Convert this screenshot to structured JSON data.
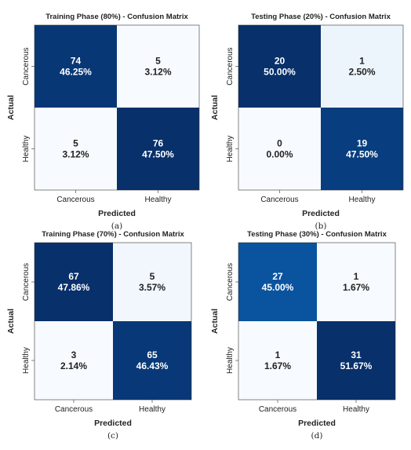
{
  "chart_data": [
    {
      "type": "heatmap",
      "title": "Training Phase (80%) - Confusion Matrix",
      "xlabel": "Predicted",
      "ylabel": "Actual",
      "x_categories": [
        "Cancerous",
        "Healthy"
      ],
      "y_categories": [
        "Cancerous",
        "Healthy"
      ],
      "counts": [
        [
          74,
          5
        ],
        [
          5,
          76
        ]
      ],
      "percents": [
        [
          "46.25%",
          "3.12%"
        ],
        [
          "3.12%",
          "47.50%"
        ]
      ],
      "caption": "(a)"
    },
    {
      "type": "heatmap",
      "title": "Testing Phase (20%) - Confusion Matrix",
      "xlabel": "Predicted",
      "ylabel": "Actual",
      "x_categories": [
        "Cancerous",
        "Healthy"
      ],
      "y_categories": [
        "Cancerous",
        "Healthy"
      ],
      "counts": [
        [
          20,
          1
        ],
        [
          0,
          19
        ]
      ],
      "percents": [
        [
          "50.00%",
          "2.50%"
        ],
        [
          "0.00%",
          "47.50%"
        ]
      ],
      "caption": "(b)"
    },
    {
      "type": "heatmap",
      "title": "Training Phase (70%) - Confusion Matrix",
      "xlabel": "Predicted",
      "ylabel": "Actual",
      "x_categories": [
        "Cancerous",
        "Healthy"
      ],
      "y_categories": [
        "Cancerous",
        "Healthy"
      ],
      "counts": [
        [
          67,
          5
        ],
        [
          3,
          65
        ]
      ],
      "percents": [
        [
          "47.86%",
          "3.57%"
        ],
        [
          "2.14%",
          "46.43%"
        ]
      ],
      "caption": "(c)"
    },
    {
      "type": "heatmap",
      "title": "Testing Phase (30%) - Confusion Matrix",
      "xlabel": "Predicted",
      "ylabel": "Actual",
      "x_categories": [
        "Cancerous",
        "Healthy"
      ],
      "y_categories": [
        "Cancerous",
        "Healthy"
      ],
      "counts": [
        [
          27,
          1
        ],
        [
          1,
          31
        ]
      ],
      "percents": [
        [
          "45.00%",
          "1.67%"
        ],
        [
          "1.67%",
          "51.67%"
        ]
      ],
      "caption": "(d)"
    }
  ],
  "colors": {
    "colormap": "Blues",
    "light": "#f7fbff",
    "dark": "#08306b",
    "text_light": "#ffffff",
    "text_dark": "#222222",
    "border": "#333333"
  }
}
